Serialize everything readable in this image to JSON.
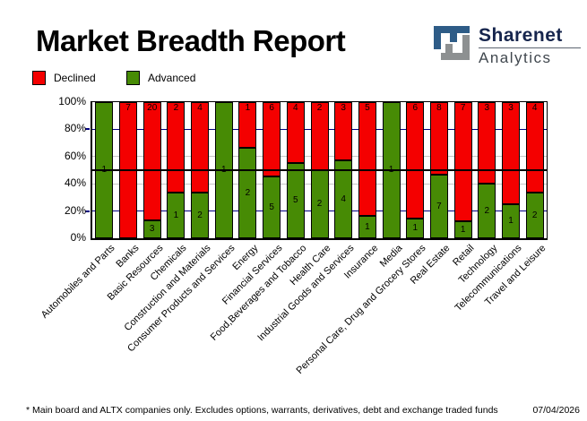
{
  "header": {
    "title": "Market Breadth Report",
    "logo": {
      "brand": "Sharenet",
      "division": "Analytics",
      "icon": "sharenet-logo-icon",
      "icon_blue": "#2e5c87",
      "icon_gray": "#8d9091"
    }
  },
  "legend": {
    "declined": {
      "label": "Declined",
      "color": "#f40000"
    },
    "advanced": {
      "label": "Advanced",
      "color": "#478b05"
    }
  },
  "footer": {
    "note": "* Main board and ALTX companies only. Excludes options, warrants, derivatives, debt and exchange traded funds",
    "date": "07/04/2026"
  },
  "chart_data": {
    "type": "bar",
    "stacked": true,
    "normalized_to_percent": true,
    "title": "Market Breadth Report",
    "categories": [
      "Automobiles and Parts",
      "Banks",
      "Basic Resources",
      "Chemicals",
      "Construction and Materials",
      "Consumer Products and Services",
      "Energy",
      "Financial Services",
      "Food,Beverages and Tobacco",
      "Health Care",
      "Industrial Goods and Services",
      "Insurance",
      "Media",
      "Personal Care, Drug and Grocery Stores",
      "Real Estate",
      "Retail",
      "Technology",
      "Telecommunications",
      "Travel and Leisure"
    ],
    "series": [
      {
        "name": "Declined",
        "color": "#f40000",
        "values": [
          0,
          7,
          20,
          2,
          4,
          0,
          1,
          6,
          4,
          2,
          3,
          5,
          0,
          6,
          8,
          7,
          3,
          3,
          4
        ]
      },
      {
        "name": "Advanced",
        "color": "#478b05",
        "values": [
          1,
          0,
          3,
          1,
          2,
          1,
          2,
          5,
          5,
          2,
          4,
          1,
          1,
          1,
          7,
          1,
          2,
          1,
          2
        ]
      }
    ],
    "ylim": [
      0,
      100
    ],
    "ylabel": "",
    "xlabel": "",
    "y_ticks": [
      {
        "label": "0%",
        "percent": 0
      },
      {
        "label": "20%",
        "percent": 20
      },
      {
        "label": "40%",
        "percent": 40
      },
      {
        "label": "60%",
        "percent": 60
      },
      {
        "label": "80%",
        "percent": 80
      },
      {
        "label": "100%",
        "percent": 100
      }
    ],
    "gridlines": [
      {
        "percent": 20,
        "color": "#000080",
        "tick": true
      },
      {
        "percent": 40,
        "color": "#c6c6c6",
        "tick": false
      },
      {
        "percent": 60,
        "color": "#c6c6c6",
        "tick": false
      },
      {
        "percent": 80,
        "color": "#000080",
        "tick": true
      }
    ],
    "midline": {
      "percent": 50,
      "color": "#000000"
    },
    "legend_position": "top-left",
    "value_labels": "red counts at top of declined segment, green counts centered in advanced segment"
  }
}
